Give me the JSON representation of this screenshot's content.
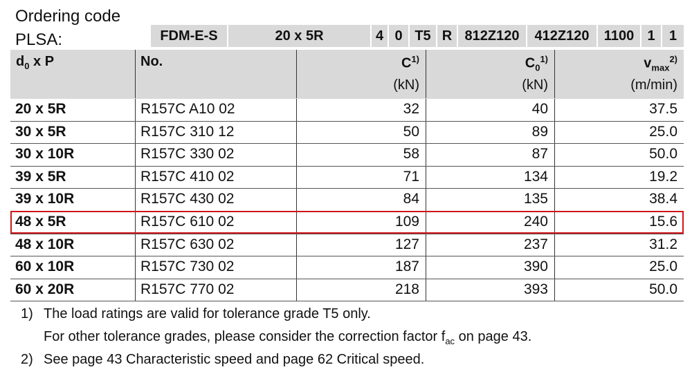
{
  "ordering_code": {
    "label_line1": "Ordering code",
    "label_line2": "PLSA:",
    "cells": [
      "FDM-E-S",
      "20 x 5R",
      "4",
      "0",
      "T5",
      "R",
      "812Z120",
      "412Z120",
      "1100",
      "1",
      "1"
    ]
  },
  "table": {
    "columns": [
      {
        "label": "d",
        "sub": "0",
        "rest": " x P"
      },
      {
        "label": "No."
      },
      {
        "label": "C",
        "sup": "1)",
        "unit": "(kN)"
      },
      {
        "label": "C",
        "sub": "0",
        "sup": "1)",
        "unit": "(kN)"
      },
      {
        "label": "v",
        "sub": "max",
        "sup": "2)",
        "unit": "(m/min)"
      }
    ],
    "rows": [
      [
        "20 x 5R",
        "R157C A10 02",
        "32",
        "40",
        "37.5"
      ],
      [
        "30 x 5R",
        "R157C 310 12",
        "50",
        "89",
        "25.0"
      ],
      [
        "30 x 10R",
        "R157C 330 02",
        "58",
        "87",
        "50.0"
      ],
      [
        "39 x 5R",
        "R157C 410 02",
        "71",
        "134",
        "19.2"
      ],
      [
        "39 x 10R",
        "R157C 430 02",
        "84",
        "135",
        "38.4"
      ],
      [
        "48 x 5R",
        "R157C 610 02",
        "109",
        "240",
        "15.6"
      ],
      [
        "48 x 10R",
        "R157C 630 02",
        "127",
        "237",
        "31.2"
      ],
      [
        "60 x 10R",
        "R157C 730 02",
        "187",
        "390",
        "25.0"
      ],
      [
        "60 x 20R",
        "R157C 770 02",
        "218",
        "393",
        "50.0"
      ]
    ],
    "highlight_row": 5
  },
  "footnotes": [
    {
      "marker": "1)",
      "line1": "The load ratings are valid for tolerance grade T5 only.",
      "line2": {
        "text": "For other tolerance grades, please consider the correction factor f",
        "sub": "ac",
        "after": " on page 43."
      }
    },
    {
      "marker": "2)",
      "line1": "See page 43 Characteristic speed and page 62 Critical speed."
    }
  ]
}
